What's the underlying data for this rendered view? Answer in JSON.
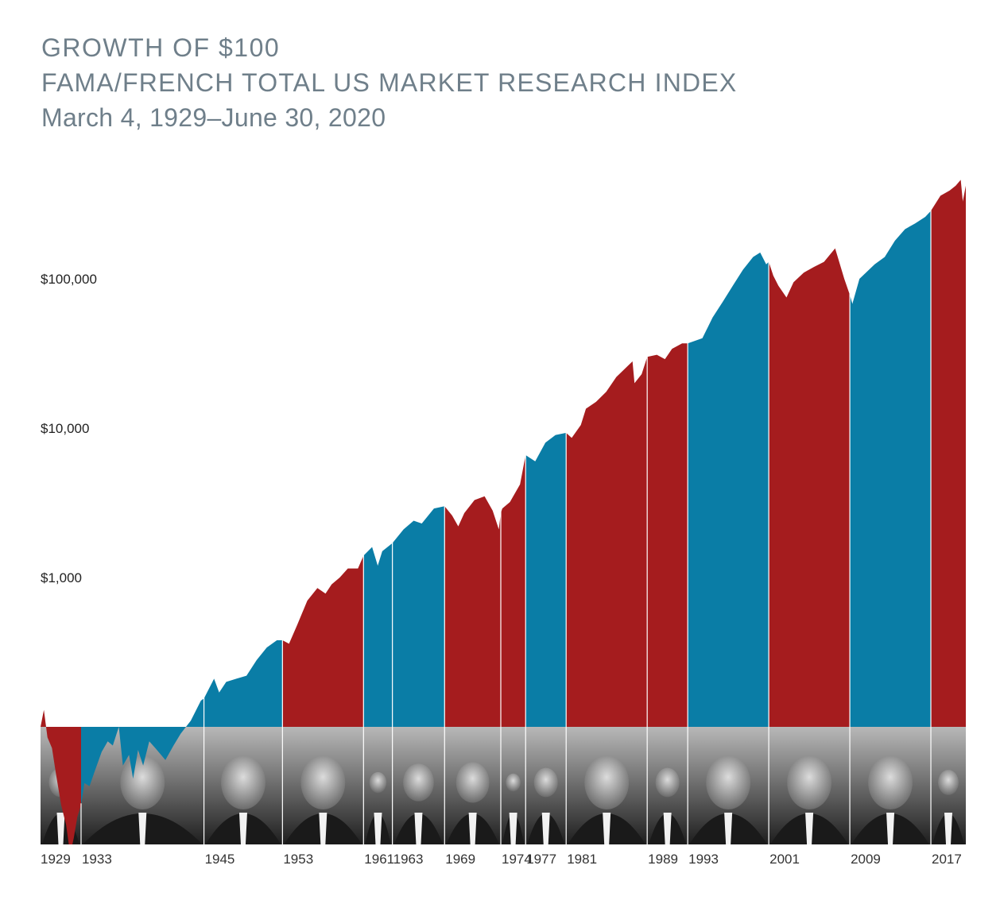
{
  "header": {
    "title": "GROWTH OF $100",
    "subtitle": "FAMA/FRENCH TOTAL US MARKET RESEARCH INDEX",
    "date_range": "March 4, 1929–June 30, 2020"
  },
  "colors": {
    "republican": "#A51C1E",
    "democrat": "#0A7DA6",
    "photo_band_top": "#b8b8b8",
    "photo_band_bottom": "#1e1e1e"
  },
  "chart_data": {
    "type": "area",
    "title": "GROWTH OF $100",
    "subtitle": "FAMA/FRENCH TOTAL US MARKET RESEARCH INDEX",
    "xlabel": "",
    "ylabel": "",
    "yscale": "log",
    "ylim": [
      8,
      500000
    ],
    "xlim": [
      1929.17,
      2020.5
    ],
    "baseline": 100,
    "y_ticks": [
      {
        "value": 1000,
        "label": "$1,000"
      },
      {
        "value": 10000,
        "label": "$10,000"
      },
      {
        "value": 100000,
        "label": "$100,000"
      }
    ],
    "x_ticks": [
      "1929",
      "1933",
      "1945",
      "1953",
      "1961",
      "1963",
      "1969",
      "1974",
      "1977",
      "1981",
      "1989",
      "1993",
      "2001",
      "2009",
      "2017"
    ],
    "terms": [
      {
        "start": 1929.17,
        "end": 1933.17,
        "label": "1929",
        "party": "R"
      },
      {
        "start": 1933.17,
        "end": 1945.3,
        "label": "1933",
        "party": "D"
      },
      {
        "start": 1945.3,
        "end": 1953.05,
        "label": "1945",
        "party": "D"
      },
      {
        "start": 1953.05,
        "end": 1961.05,
        "label": "1953",
        "party": "R"
      },
      {
        "start": 1961.05,
        "end": 1963.9,
        "label": "1961",
        "party": "D"
      },
      {
        "start": 1963.9,
        "end": 1969.05,
        "label": "1963",
        "party": "D"
      },
      {
        "start": 1969.05,
        "end": 1974.6,
        "label": "1969",
        "party": "R"
      },
      {
        "start": 1974.6,
        "end": 1977.05,
        "label": "1974",
        "party": "R"
      },
      {
        "start": 1977.05,
        "end": 1981.05,
        "label": "1977",
        "party": "D"
      },
      {
        "start": 1981.05,
        "end": 1989.05,
        "label": "1981",
        "party": "R"
      },
      {
        "start": 1989.05,
        "end": 1993.05,
        "label": "1989",
        "party": "R"
      },
      {
        "start": 1993.05,
        "end": 2001.05,
        "label": "1993",
        "party": "D"
      },
      {
        "start": 2001.05,
        "end": 2009.05,
        "label": "2001",
        "party": "R"
      },
      {
        "start": 2009.05,
        "end": 2017.05,
        "label": "2009",
        "party": "D"
      },
      {
        "start": 2017.05,
        "end": 2020.5,
        "label": "2017",
        "party": "R"
      }
    ],
    "series": [
      {
        "x": [
          1929.17,
          1929.5,
          1929.85,
          1930.3,
          1930.7,
          1931.2,
          1931.7,
          1932.1,
          1932.45,
          1932.8,
          1933.17,
          1933.5,
          1934.0,
          1934.5,
          1935.2,
          1935.8,
          1936.3,
          1936.9,
          1937.3,
          1937.9,
          1938.3,
          1938.8,
          1939.3,
          1939.9,
          1940.5,
          1941.5,
          1942.3,
          1943.0,
          1944.0,
          1945.0,
          1945.3,
          1946.3,
          1946.8,
          1947.5,
          1948.5,
          1949.5,
          1950.5,
          1951.5,
          1952.5,
          1953.05,
          1953.7,
          1954.5,
          1955.5,
          1956.5,
          1957.3,
          1957.9,
          1958.7,
          1959.5,
          1960.5,
          1961.05,
          1961.9,
          1962.45,
          1962.9,
          1963.9,
          1965.0,
          1966.0,
          1966.8,
          1968.0,
          1969.05,
          1969.8,
          1970.4,
          1971.0,
          1972.0,
          1973.0,
          1973.8,
          1974.4,
          1974.6,
          1974.75,
          1975.5,
          1976.5,
          1977.05,
          1978.0,
          1979.0,
          1980.0,
          1981.05,
          1981.6,
          1982.5,
          1983.0,
          1984.0,
          1985.0,
          1986.0,
          1987.6,
          1987.8,
          1988.5,
          1989.05,
          1990.0,
          1990.8,
          1991.5,
          1992.5,
          1993.05,
          1994.5,
          1995.5,
          1996.5,
          1997.5,
          1998.5,
          1999.5,
          2000.2,
          2000.8,
          2001.05,
          2001.5,
          2002.0,
          2002.8,
          2003.5,
          2004.5,
          2005.5,
          2006.5,
          2007.6,
          2008.5,
          2009.05,
          2009.3,
          2010.0,
          2011.5,
          2012.5,
          2013.5,
          2014.5,
          2015.5,
          2016.5,
          2017.05,
          2018.0,
          2018.9,
          2019.5,
          2020.0,
          2020.2,
          2020.5
        ],
        "y": [
          100,
          130,
          85,
          72,
          48,
          30,
          22,
          14,
          18,
          25,
          30,
          42,
          40,
          50,
          68,
          80,
          75,
          100,
          55,
          65,
          45,
          70,
          55,
          80,
          72,
          60,
          75,
          90,
          110,
          150,
          155,
          210,
          170,
          200,
          210,
          220,
          280,
          340,
          380,
          380,
          360,
          480,
          700,
          850,
          780,
          900,
          1000,
          1150,
          1150,
          1400,
          1600,
          1200,
          1500,
          1700,
          2100,
          2400,
          2300,
          2900,
          3000,
          2600,
          2200,
          2700,
          3300,
          3500,
          2800,
          2100,
          2700,
          2900,
          3200,
          4200,
          6600,
          6000,
          8000,
          9000,
          9300,
          8600,
          10500,
          13500,
          15000,
          17500,
          22000,
          28000,
          20000,
          23000,
          30000,
          31000,
          29000,
          34000,
          37000,
          37000,
          40000,
          55000,
          70000,
          90000,
          115000,
          140000,
          150000,
          125000,
          130000,
          105000,
          90000,
          75000,
          95000,
          110000,
          120000,
          130000,
          160000,
          100000,
          78000,
          68000,
          100000,
          125000,
          140000,
          180000,
          215000,
          235000,
          260000,
          285000,
          360000,
          390000,
          420000,
          460000,
          330000,
          420000
        ]
      }
    ]
  }
}
